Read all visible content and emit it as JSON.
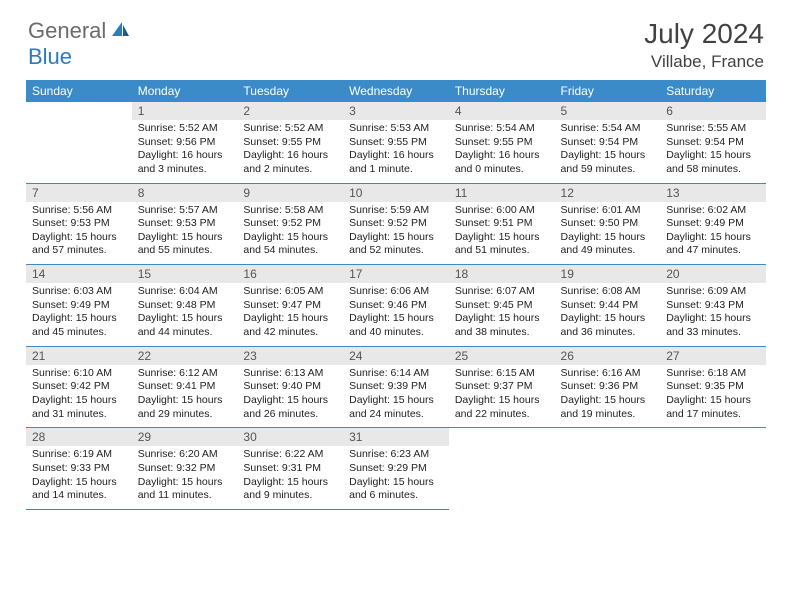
{
  "brand": {
    "general": "General",
    "blue": "Blue"
  },
  "title": "July 2024",
  "location": "Villabe, France",
  "colors": {
    "header_bg": "#3b8bc8",
    "header_fg": "#ffffff",
    "daynum_bg": "#e8e8e8",
    "border": "#3b8bc8",
    "title_color": "#424242",
    "logo_gray": "#6b6b6b",
    "logo_blue": "#2d7bbd"
  },
  "weekdays": [
    "Sunday",
    "Monday",
    "Tuesday",
    "Wednesday",
    "Thursday",
    "Friday",
    "Saturday"
  ],
  "weeks": [
    [
      null,
      {
        "n": "1",
        "sr": "Sunrise: 5:52 AM",
        "ss": "Sunset: 9:56 PM",
        "d1": "Daylight: 16 hours",
        "d2": "and 3 minutes."
      },
      {
        "n": "2",
        "sr": "Sunrise: 5:52 AM",
        "ss": "Sunset: 9:55 PM",
        "d1": "Daylight: 16 hours",
        "d2": "and 2 minutes."
      },
      {
        "n": "3",
        "sr": "Sunrise: 5:53 AM",
        "ss": "Sunset: 9:55 PM",
        "d1": "Daylight: 16 hours",
        "d2": "and 1 minute."
      },
      {
        "n": "4",
        "sr": "Sunrise: 5:54 AM",
        "ss": "Sunset: 9:55 PM",
        "d1": "Daylight: 16 hours",
        "d2": "and 0 minutes."
      },
      {
        "n": "5",
        "sr": "Sunrise: 5:54 AM",
        "ss": "Sunset: 9:54 PM",
        "d1": "Daylight: 15 hours",
        "d2": "and 59 minutes."
      },
      {
        "n": "6",
        "sr": "Sunrise: 5:55 AM",
        "ss": "Sunset: 9:54 PM",
        "d1": "Daylight: 15 hours",
        "d2": "and 58 minutes."
      }
    ],
    [
      {
        "n": "7",
        "sr": "Sunrise: 5:56 AM",
        "ss": "Sunset: 9:53 PM",
        "d1": "Daylight: 15 hours",
        "d2": "and 57 minutes."
      },
      {
        "n": "8",
        "sr": "Sunrise: 5:57 AM",
        "ss": "Sunset: 9:53 PM",
        "d1": "Daylight: 15 hours",
        "d2": "and 55 minutes."
      },
      {
        "n": "9",
        "sr": "Sunrise: 5:58 AM",
        "ss": "Sunset: 9:52 PM",
        "d1": "Daylight: 15 hours",
        "d2": "and 54 minutes."
      },
      {
        "n": "10",
        "sr": "Sunrise: 5:59 AM",
        "ss": "Sunset: 9:52 PM",
        "d1": "Daylight: 15 hours",
        "d2": "and 52 minutes."
      },
      {
        "n": "11",
        "sr": "Sunrise: 6:00 AM",
        "ss": "Sunset: 9:51 PM",
        "d1": "Daylight: 15 hours",
        "d2": "and 51 minutes."
      },
      {
        "n": "12",
        "sr": "Sunrise: 6:01 AM",
        "ss": "Sunset: 9:50 PM",
        "d1": "Daylight: 15 hours",
        "d2": "and 49 minutes."
      },
      {
        "n": "13",
        "sr": "Sunrise: 6:02 AM",
        "ss": "Sunset: 9:49 PM",
        "d1": "Daylight: 15 hours",
        "d2": "and 47 minutes."
      }
    ],
    [
      {
        "n": "14",
        "sr": "Sunrise: 6:03 AM",
        "ss": "Sunset: 9:49 PM",
        "d1": "Daylight: 15 hours",
        "d2": "and 45 minutes."
      },
      {
        "n": "15",
        "sr": "Sunrise: 6:04 AM",
        "ss": "Sunset: 9:48 PM",
        "d1": "Daylight: 15 hours",
        "d2": "and 44 minutes."
      },
      {
        "n": "16",
        "sr": "Sunrise: 6:05 AM",
        "ss": "Sunset: 9:47 PM",
        "d1": "Daylight: 15 hours",
        "d2": "and 42 minutes."
      },
      {
        "n": "17",
        "sr": "Sunrise: 6:06 AM",
        "ss": "Sunset: 9:46 PM",
        "d1": "Daylight: 15 hours",
        "d2": "and 40 minutes."
      },
      {
        "n": "18",
        "sr": "Sunrise: 6:07 AM",
        "ss": "Sunset: 9:45 PM",
        "d1": "Daylight: 15 hours",
        "d2": "and 38 minutes."
      },
      {
        "n": "19",
        "sr": "Sunrise: 6:08 AM",
        "ss": "Sunset: 9:44 PM",
        "d1": "Daylight: 15 hours",
        "d2": "and 36 minutes."
      },
      {
        "n": "20",
        "sr": "Sunrise: 6:09 AM",
        "ss": "Sunset: 9:43 PM",
        "d1": "Daylight: 15 hours",
        "d2": "and 33 minutes."
      }
    ],
    [
      {
        "n": "21",
        "sr": "Sunrise: 6:10 AM",
        "ss": "Sunset: 9:42 PM",
        "d1": "Daylight: 15 hours",
        "d2": "and 31 minutes."
      },
      {
        "n": "22",
        "sr": "Sunrise: 6:12 AM",
        "ss": "Sunset: 9:41 PM",
        "d1": "Daylight: 15 hours",
        "d2": "and 29 minutes."
      },
      {
        "n": "23",
        "sr": "Sunrise: 6:13 AM",
        "ss": "Sunset: 9:40 PM",
        "d1": "Daylight: 15 hours",
        "d2": "and 26 minutes."
      },
      {
        "n": "24",
        "sr": "Sunrise: 6:14 AM",
        "ss": "Sunset: 9:39 PM",
        "d1": "Daylight: 15 hours",
        "d2": "and 24 minutes."
      },
      {
        "n": "25",
        "sr": "Sunrise: 6:15 AM",
        "ss": "Sunset: 9:37 PM",
        "d1": "Daylight: 15 hours",
        "d2": "and 22 minutes."
      },
      {
        "n": "26",
        "sr": "Sunrise: 6:16 AM",
        "ss": "Sunset: 9:36 PM",
        "d1": "Daylight: 15 hours",
        "d2": "and 19 minutes."
      },
      {
        "n": "27",
        "sr": "Sunrise: 6:18 AM",
        "ss": "Sunset: 9:35 PM",
        "d1": "Daylight: 15 hours",
        "d2": "and 17 minutes."
      }
    ],
    [
      {
        "n": "28",
        "sr": "Sunrise: 6:19 AM",
        "ss": "Sunset: 9:33 PM",
        "d1": "Daylight: 15 hours",
        "d2": "and 14 minutes."
      },
      {
        "n": "29",
        "sr": "Sunrise: 6:20 AM",
        "ss": "Sunset: 9:32 PM",
        "d1": "Daylight: 15 hours",
        "d2": "and 11 minutes."
      },
      {
        "n": "30",
        "sr": "Sunrise: 6:22 AM",
        "ss": "Sunset: 9:31 PM",
        "d1": "Daylight: 15 hours",
        "d2": "and 9 minutes."
      },
      {
        "n": "31",
        "sr": "Sunrise: 6:23 AM",
        "ss": "Sunset: 9:29 PM",
        "d1": "Daylight: 15 hours",
        "d2": "and 6 minutes."
      },
      null,
      null,
      null
    ]
  ]
}
